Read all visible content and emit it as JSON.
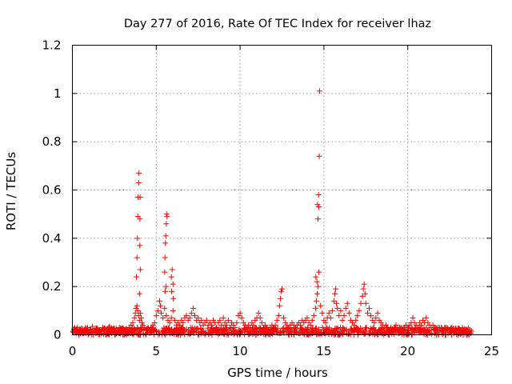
{
  "chart_data": {
    "type": "scatter",
    "title": "Day 277 of 2016, Rate Of TEC Index for receiver lhaz",
    "xlabel": "GPS time / hours",
    "ylabel": "ROTI / TECUs",
    "xlim": [
      0,
      25
    ],
    "ylim": [
      0,
      1.2
    ],
    "grid": true,
    "marker": "+",
    "series_color": "#ff0000",
    "frame_color": "#000000",
    "grid_color": "#9a9a9a",
    "x_ticks": [
      {
        "value": 0,
        "label": "0"
      },
      {
        "value": 5,
        "label": "5"
      },
      {
        "value": 10,
        "label": "10"
      },
      {
        "value": 15,
        "label": "15"
      },
      {
        "value": 20,
        "label": "20"
      },
      {
        "value": 25,
        "label": "25"
      }
    ],
    "y_ticks": [
      {
        "value": 0,
        "label": "0"
      },
      {
        "value": 0.2,
        "label": "0.2"
      },
      {
        "value": 0.4,
        "label": "0.4"
      },
      {
        "value": 0.6,
        "label": "0.6"
      },
      {
        "value": 0.8,
        "label": "0.8"
      },
      {
        "value": 1.0,
        "label": "1"
      },
      {
        "value": 1.2,
        "label": "1.2"
      }
    ],
    "series": [
      {
        "name": "ROTI",
        "points": [
          [
            0.1,
            0.02
          ],
          [
            0.2,
            0.01
          ],
          [
            0.3,
            0.03
          ],
          [
            0.4,
            0.015
          ],
          [
            0.5,
            0.02
          ],
          [
            0.6,
            0.025
          ],
          [
            0.7,
            0.01
          ],
          [
            0.8,
            0.02
          ],
          [
            0.9,
            0.03
          ],
          [
            1.0,
            0.015
          ],
          [
            1.1,
            0.02
          ],
          [
            1.2,
            0.035
          ],
          [
            1.3,
            0.02
          ],
          [
            1.4,
            0.01
          ],
          [
            1.5,
            0.025
          ],
          [
            1.6,
            0.02
          ],
          [
            1.7,
            0.015
          ],
          [
            1.8,
            0.03
          ],
          [
            1.9,
            0.02
          ],
          [
            2.0,
            0.01
          ],
          [
            2.1,
            0.025
          ],
          [
            2.2,
            0.035
          ],
          [
            2.3,
            0.02
          ],
          [
            2.4,
            0.015
          ],
          [
            2.5,
            0.02
          ],
          [
            2.6,
            0.01
          ],
          [
            2.7,
            0.02
          ],
          [
            2.8,
            0.03
          ],
          [
            2.9,
            0.02
          ],
          [
            3.0,
            0.015
          ],
          [
            3.1,
            0.02
          ],
          [
            3.2,
            0.025
          ],
          [
            3.3,
            0.02
          ],
          [
            3.4,
            0.03
          ],
          [
            3.5,
            0.04
          ],
          [
            3.6,
            0.05
          ],
          [
            3.7,
            0.07
          ],
          [
            3.75,
            0.09
          ],
          [
            3.8,
            0.11
          ],
          [
            3.85,
            0.12
          ],
          [
            3.9,
            0.1
          ],
          [
            3.95,
            0.08
          ],
          [
            4.0,
            0.06
          ],
          [
            4.05,
            0.09
          ],
          [
            4.1,
            0.07
          ],
          [
            4.15,
            0.05
          ],
          [
            4.2,
            0.04
          ],
          [
            3.82,
            0.24
          ],
          [
            3.85,
            0.32
          ],
          [
            3.88,
            0.4
          ],
          [
            3.9,
            0.49
          ],
          [
            3.92,
            0.57
          ],
          [
            3.95,
            0.63
          ],
          [
            3.97,
            0.67
          ],
          [
            4.0,
            0.17
          ],
          [
            4.02,
            0.37
          ],
          [
            4.03,
            0.48
          ],
          [
            4.04,
            0.57
          ],
          [
            4.05,
            0.27
          ],
          [
            4.3,
            0.03
          ],
          [
            4.4,
            0.02
          ],
          [
            4.5,
            0.025
          ],
          [
            4.6,
            0.02
          ],
          [
            4.7,
            0.03
          ],
          [
            4.8,
            0.04
          ],
          [
            4.9,
            0.05
          ],
          [
            5.0,
            0.08
          ],
          [
            5.1,
            0.1
          ],
          [
            5.2,
            0.14
          ],
          [
            5.25,
            0.12
          ],
          [
            5.3,
            0.09
          ],
          [
            5.4,
            0.07
          ],
          [
            5.5,
            0.11
          ],
          [
            5.6,
            0.08
          ],
          [
            5.7,
            0.06
          ],
          [
            5.8,
            0.05
          ],
          [
            5.9,
            0.07
          ],
          [
            6.0,
            0.1
          ],
          [
            6.1,
            0.06
          ],
          [
            5.5,
            0.26
          ],
          [
            5.52,
            0.32
          ],
          [
            5.55,
            0.38
          ],
          [
            5.57,
            0.41
          ],
          [
            5.6,
            0.46
          ],
          [
            5.62,
            0.5
          ],
          [
            5.64,
            0.49
          ],
          [
            5.58,
            0.2
          ],
          [
            5.53,
            0.18
          ],
          [
            5.9,
            0.24
          ],
          [
            5.95,
            0.27
          ],
          [
            6.0,
            0.21
          ],
          [
            5.92,
            0.18
          ],
          [
            6.02,
            0.15
          ],
          [
            6.2,
            0.04
          ],
          [
            6.3,
            0.05
          ],
          [
            6.4,
            0.04
          ],
          [
            6.5,
            0.06
          ],
          [
            6.6,
            0.05
          ],
          [
            6.7,
            0.07
          ],
          [
            6.8,
            0.08
          ],
          [
            6.9,
            0.06
          ],
          [
            7.0,
            0.07
          ],
          [
            7.1,
            0.09
          ],
          [
            7.2,
            0.11
          ],
          [
            7.3,
            0.08
          ],
          [
            7.4,
            0.06
          ],
          [
            7.5,
            0.07
          ],
          [
            7.6,
            0.05
          ],
          [
            7.7,
            0.06
          ],
          [
            7.8,
            0.04
          ],
          [
            7.9,
            0.05
          ],
          [
            8.0,
            0.06
          ],
          [
            8.1,
            0.04
          ],
          [
            8.2,
            0.05
          ],
          [
            8.3,
            0.04
          ],
          [
            8.4,
            0.06
          ],
          [
            8.5,
            0.05
          ],
          [
            8.6,
            0.03
          ],
          [
            8.7,
            0.05
          ],
          [
            8.8,
            0.06
          ],
          [
            8.9,
            0.04
          ],
          [
            9.0,
            0.07
          ],
          [
            9.1,
            0.05
          ],
          [
            9.2,
            0.04
          ],
          [
            9.3,
            0.06
          ],
          [
            9.4,
            0.03
          ],
          [
            9.5,
            0.05
          ],
          [
            9.6,
            0.04
          ],
          [
            9.7,
            0.03
          ],
          [
            9.8,
            0.05
          ],
          [
            9.9,
            0.08
          ],
          [
            10.0,
            0.09
          ],
          [
            10.1,
            0.07
          ],
          [
            10.2,
            0.05
          ],
          [
            10.3,
            0.04
          ],
          [
            10.4,
            0.03
          ],
          [
            10.5,
            0.04
          ],
          [
            10.6,
            0.03
          ],
          [
            10.7,
            0.05
          ],
          [
            10.8,
            0.04
          ],
          [
            10.9,
            0.06
          ],
          [
            11.0,
            0.07
          ],
          [
            11.1,
            0.09
          ],
          [
            11.2,
            0.07
          ],
          [
            11.3,
            0.05
          ],
          [
            11.4,
            0.03
          ],
          [
            11.5,
            0.04
          ],
          [
            11.6,
            0.03
          ],
          [
            11.7,
            0.02
          ],
          [
            11.8,
            0.03
          ],
          [
            11.9,
            0.04
          ],
          [
            12.0,
            0.03
          ],
          [
            12.1,
            0.04
          ],
          [
            12.2,
            0.06
          ],
          [
            12.3,
            0.08
          ],
          [
            12.35,
            0.12
          ],
          [
            12.4,
            0.15
          ],
          [
            12.45,
            0.18
          ],
          [
            12.5,
            0.19
          ],
          [
            12.6,
            0.07
          ],
          [
            12.7,
            0.05
          ],
          [
            12.8,
            0.04
          ],
          [
            12.9,
            0.03
          ],
          [
            13.0,
            0.04
          ],
          [
            13.1,
            0.05
          ],
          [
            13.2,
            0.04
          ],
          [
            13.3,
            0.03
          ],
          [
            13.4,
            0.04
          ],
          [
            13.5,
            0.05
          ],
          [
            13.6,
            0.04
          ],
          [
            13.7,
            0.06
          ],
          [
            13.8,
            0.05
          ],
          [
            13.9,
            0.06
          ],
          [
            14.0,
            0.07
          ],
          [
            14.1,
            0.05
          ],
          [
            14.2,
            0.04
          ],
          [
            14.3,
            0.06
          ],
          [
            14.4,
            0.08
          ],
          [
            14.5,
            0.11
          ],
          [
            14.55,
            0.14
          ],
          [
            14.6,
            0.17
          ],
          [
            14.65,
            0.2
          ],
          [
            14.7,
            0.26
          ],
          [
            14.52,
            0.24
          ],
          [
            14.58,
            0.22
          ],
          [
            14.62,
            0.54
          ],
          [
            14.65,
            0.48
          ],
          [
            14.68,
            0.58
          ],
          [
            14.7,
            0.53
          ],
          [
            14.72,
            0.74
          ],
          [
            14.74,
            1.01
          ],
          [
            14.8,
            0.12
          ],
          [
            14.9,
            0.09
          ],
          [
            15.0,
            0.06
          ],
          [
            15.1,
            0.05
          ],
          [
            15.2,
            0.07
          ],
          [
            15.3,
            0.09
          ],
          [
            15.4,
            0.07
          ],
          [
            15.5,
            0.1
          ],
          [
            15.6,
            0.14
          ],
          [
            15.65,
            0.17
          ],
          [
            15.7,
            0.19
          ],
          [
            15.75,
            0.13
          ],
          [
            15.8,
            0.11
          ],
          [
            15.9,
            0.08
          ],
          [
            16.0,
            0.1
          ],
          [
            16.1,
            0.06
          ],
          [
            16.2,
            0.08
          ],
          [
            16.3,
            0.11
          ],
          [
            16.4,
            0.13
          ],
          [
            16.5,
            0.09
          ],
          [
            16.6,
            0.06
          ],
          [
            16.7,
            0.05
          ],
          [
            16.8,
            0.04
          ],
          [
            16.9,
            0.06
          ],
          [
            17.0,
            0.08
          ],
          [
            17.1,
            0.1
          ],
          [
            17.2,
            0.13
          ],
          [
            17.3,
            0.16
          ],
          [
            17.35,
            0.19
          ],
          [
            17.4,
            0.21
          ],
          [
            17.45,
            0.17
          ],
          [
            17.5,
            0.13
          ],
          [
            17.6,
            0.09
          ],
          [
            17.7,
            0.11
          ],
          [
            17.8,
            0.08
          ],
          [
            17.9,
            0.06
          ],
          [
            18.0,
            0.05
          ],
          [
            18.1,
            0.07
          ],
          [
            18.2,
            0.09
          ],
          [
            18.3,
            0.06
          ],
          [
            18.4,
            0.05
          ],
          [
            18.5,
            0.04
          ],
          [
            18.6,
            0.03
          ],
          [
            18.7,
            0.04
          ],
          [
            18.8,
            0.03
          ],
          [
            18.9,
            0.02
          ],
          [
            19.0,
            0.03
          ],
          [
            19.1,
            0.02
          ],
          [
            19.2,
            0.03
          ],
          [
            19.3,
            0.04
          ],
          [
            19.4,
            0.03
          ],
          [
            19.5,
            0.02
          ],
          [
            19.6,
            0.03
          ],
          [
            19.7,
            0.02
          ],
          [
            19.8,
            0.03
          ],
          [
            19.9,
            0.04
          ],
          [
            20.0,
            0.03
          ],
          [
            20.1,
            0.04
          ],
          [
            20.2,
            0.05
          ],
          [
            20.3,
            0.07
          ],
          [
            20.4,
            0.05
          ],
          [
            20.5,
            0.04
          ],
          [
            20.6,
            0.03
          ],
          [
            20.7,
            0.05
          ],
          [
            20.8,
            0.04
          ],
          [
            20.9,
            0.06
          ],
          [
            21.0,
            0.05
          ],
          [
            21.1,
            0.07
          ],
          [
            21.2,
            0.05
          ],
          [
            21.3,
            0.04
          ],
          [
            21.4,
            0.03
          ],
          [
            21.5,
            0.04
          ],
          [
            21.6,
            0.03
          ],
          [
            21.7,
            0.02
          ],
          [
            21.8,
            0.03
          ],
          [
            21.9,
            0.02
          ],
          [
            22.0,
            0.03
          ],
          [
            22.1,
            0.02
          ],
          [
            22.2,
            0.03
          ],
          [
            22.3,
            0.02
          ],
          [
            22.4,
            0.025
          ],
          [
            22.5,
            0.02
          ],
          [
            22.6,
            0.03
          ],
          [
            22.7,
            0.02
          ],
          [
            22.8,
            0.015
          ],
          [
            22.9,
            0.02
          ],
          [
            23.0,
            0.025
          ],
          [
            23.1,
            0.02
          ],
          [
            23.2,
            0.015
          ],
          [
            23.3,
            0.02
          ],
          [
            23.4,
            0.025
          ],
          [
            23.5,
            0.02
          ],
          [
            23.6,
            0.015
          ],
          [
            23.7,
            0.02
          ],
          [
            23.8,
            0.015
          ]
        ]
      }
    ]
  }
}
